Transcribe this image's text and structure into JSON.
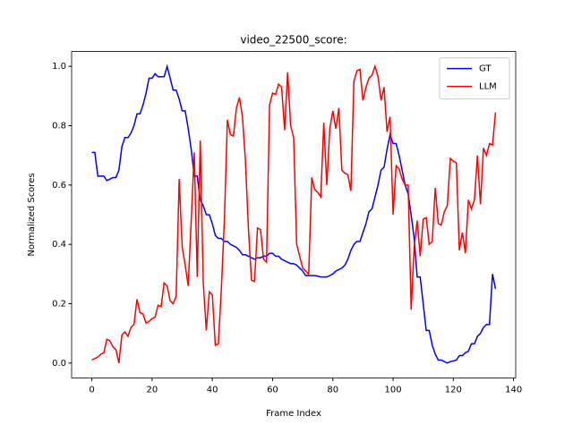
{
  "chart_data": {
    "type": "line",
    "title": "video_22500_score:",
    "x_label": "Frame Index",
    "y_label": "Normalized Scores",
    "x": [
      0,
      1,
      2,
      3,
      4,
      5,
      6,
      7,
      8,
      9,
      10,
      11,
      12,
      13,
      14,
      15,
      16,
      17,
      18,
      19,
      20,
      21,
      22,
      23,
      24,
      25,
      26,
      27,
      28,
      29,
      30,
      31,
      32,
      33,
      34,
      35,
      36,
      37,
      38,
      39,
      40,
      41,
      42,
      43,
      44,
      45,
      46,
      47,
      48,
      49,
      50,
      51,
      52,
      53,
      54,
      55,
      56,
      57,
      58,
      59,
      60,
      61,
      62,
      63,
      64,
      65,
      66,
      67,
      68,
      69,
      70,
      71,
      72,
      73,
      74,
      75,
      76,
      77,
      78,
      79,
      80,
      81,
      82,
      83,
      84,
      85,
      86,
      87,
      88,
      89,
      90,
      91,
      92,
      93,
      94,
      95,
      96,
      97,
      98,
      99,
      100,
      101,
      102,
      103,
      104,
      105,
      106,
      107,
      108,
      109,
      110,
      111,
      112,
      113,
      114,
      115,
      116,
      117,
      118,
      119,
      120,
      121,
      122,
      123,
      124,
      125,
      126,
      127,
      128,
      129,
      130,
      131,
      132,
      133,
      134
    ],
    "series": [
      {
        "name": "GT",
        "color": "#0000ff",
        "values": [
          0.71,
          0.71,
          0.63,
          0.63,
          0.63,
          0.615,
          0.62,
          0.625,
          0.625,
          0.65,
          0.73,
          0.76,
          0.76,
          0.775,
          0.8,
          0.84,
          0.84,
          0.87,
          0.91,
          0.96,
          0.96,
          0.975,
          0.965,
          0.965,
          0.965,
          1.0,
          0.96,
          0.92,
          0.92,
          0.89,
          0.85,
          0.85,
          0.79,
          0.72,
          0.63,
          0.63,
          0.55,
          0.53,
          0.5,
          0.5,
          0.47,
          0.43,
          0.42,
          0.42,
          0.41,
          0.41,
          0.4,
          0.395,
          0.39,
          0.38,
          0.365,
          0.365,
          0.36,
          0.355,
          0.35,
          0.355,
          0.355,
          0.36,
          0.36,
          0.37,
          0.37,
          0.36,
          0.36,
          0.35,
          0.345,
          0.34,
          0.335,
          0.335,
          0.33,
          0.32,
          0.31,
          0.295,
          0.295,
          0.295,
          0.295,
          0.293,
          0.29,
          0.29,
          0.29,
          0.295,
          0.3,
          0.31,
          0.315,
          0.32,
          0.33,
          0.35,
          0.38,
          0.4,
          0.41,
          0.41,
          0.44,
          0.47,
          0.51,
          0.52,
          0.56,
          0.6,
          0.65,
          0.66,
          0.72,
          0.77,
          0.74,
          0.74,
          0.7,
          0.65,
          0.6,
          0.57,
          0.5,
          0.42,
          0.29,
          0.29,
          0.2,
          0.11,
          0.11,
          0.06,
          0.03,
          0.01,
          0.01,
          0.005,
          0.0,
          0.005,
          0.007,
          0.01,
          0.025,
          0.025,
          0.035,
          0.04,
          0.065,
          0.065,
          0.09,
          0.1,
          0.12,
          0.13,
          0.13,
          0.3,
          0.25
        ]
      },
      {
        "name": "LLM",
        "color": "#ff0000",
        "values": [
          0.01,
          0.015,
          0.02,
          0.03,
          0.035,
          0.08,
          0.075,
          0.055,
          0.045,
          0.0,
          0.095,
          0.105,
          0.09,
          0.12,
          0.13,
          0.215,
          0.17,
          0.165,
          0.135,
          0.14,
          0.15,
          0.155,
          0.195,
          0.19,
          0.27,
          0.26,
          0.21,
          0.2,
          0.225,
          0.62,
          0.39,
          0.33,
          0.26,
          0.48,
          0.71,
          0.29,
          0.75,
          0.27,
          0.11,
          0.24,
          0.23,
          0.06,
          0.065,
          0.25,
          0.48,
          0.82,
          0.77,
          0.765,
          0.86,
          0.895,
          0.83,
          0.68,
          0.45,
          0.28,
          0.275,
          0.455,
          0.45,
          0.35,
          0.34,
          0.87,
          0.91,
          0.905,
          0.94,
          0.93,
          0.785,
          0.98,
          0.8,
          0.76,
          0.4,
          0.36,
          0.32,
          0.31,
          0.3,
          0.625,
          0.585,
          0.575,
          0.56,
          0.81,
          0.6,
          0.79,
          0.85,
          0.79,
          0.86,
          0.65,
          0.64,
          0.635,
          0.58,
          0.95,
          0.985,
          0.99,
          0.885,
          0.93,
          0.96,
          0.97,
          1.0,
          0.965,
          0.885,
          0.93,
          0.78,
          0.83,
          0.5,
          0.665,
          0.655,
          0.62,
          0.6,
          0.6,
          0.18,
          0.39,
          0.48,
          0.36,
          0.485,
          0.49,
          0.4,
          0.41,
          0.59,
          0.47,
          0.465,
          0.51,
          0.53,
          0.69,
          0.68,
          0.675,
          0.38,
          0.44,
          0.37,
          0.55,
          0.52,
          0.55,
          0.7,
          0.535,
          0.725,
          0.7,
          0.74,
          0.735,
          0.845
        ]
      }
    ],
    "xlim": [
      -6.7,
      140.7
    ],
    "xticks": [
      0,
      20,
      40,
      60,
      80,
      100,
      120,
      140
    ],
    "ylim": [
      -0.05,
      1.05
    ],
    "yticks": [
      {
        "value": 0,
        "label": "0.0"
      },
      0.2,
      0.4,
      0.6,
      0.8,
      {
        "value": 1,
        "label": "1.0"
      }
    ],
    "legend": "upper right"
  }
}
